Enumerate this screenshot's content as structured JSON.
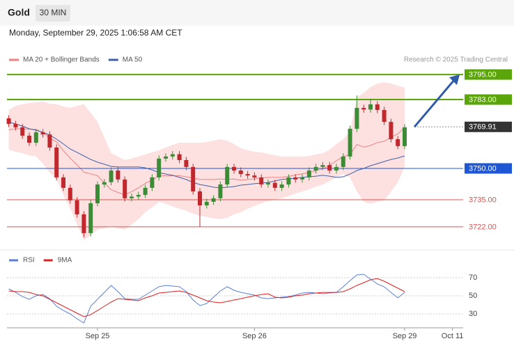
{
  "header": {
    "symbol": "Gold",
    "interval": "30 MIN",
    "timestamp": "Monday, September 29, 2025 1:06:58 AM CET",
    "credit": "Research © 2025 Trading Central"
  },
  "chart_data": [
    {
      "type": "candlestick",
      "categories": [
        null,
        null,
        null,
        null,
        null,
        null,
        null,
        null,
        null,
        null,
        null,
        null,
        null,
        "Sep 25",
        null,
        null,
        null,
        null,
        null,
        null,
        null,
        null,
        null,
        null,
        null,
        null,
        null,
        null,
        null,
        null,
        null,
        null,
        null,
        null,
        null,
        null,
        "Sep 26",
        null,
        null,
        null,
        null,
        null,
        null,
        null,
        null,
        null,
        null,
        null,
        null,
        null,
        null,
        null,
        null,
        null,
        null,
        null,
        null,
        null,
        "Sep 29",
        null,
        null,
        null,
        null,
        null,
        null,
        "Oct 11"
      ],
      "open": [
        3774,
        3771.3,
        3769.7,
        3765.7,
        3762.3,
        3767.3,
        3766.3,
        3760,
        3745.7,
        3740.7,
        3734.7,
        3728,
        3719,
        3733.3,
        3742.3,
        3743.4,
        3749,
        3744.7,
        3735.7,
        3736.5,
        3737.3,
        3740.7,
        3745.7,
        3754.7,
        3755.7,
        3756.8,
        3754,
        3750.7,
        3739,
        3732.3,
        3734,
        3735.7,
        3742.3,
        3750.7,
        3749,
        3747.3,
        3746.6,
        3745.7,
        3742.3,
        3743.1,
        3740.7,
        3742.3,
        3745.7,
        3744.7,
        3745.7,
        3749,
        3750.7,
        3751.6,
        3749,
        3750.7,
        3755.7,
        3769,
        3779,
        3778.2,
        3780.7,
        3778,
        3772.3,
        3764,
        3760.7,
        null,
        null,
        null,
        null,
        null,
        null,
        null
      ],
      "high": [
        3775.5,
        3772.8,
        3771.2,
        3767.2,
        3768.8,
        3768.8,
        3767.8,
        3761.5,
        3747.2,
        3742.2,
        3736.2,
        3729.5,
        3734.8,
        3743.8,
        3744.9,
        3750.5,
        3750.5,
        3746.2,
        3738,
        3738.8,
        3742.2,
        3747.2,
        3756.2,
        3757.2,
        3758.3,
        3758.3,
        3755.5,
        3752.2,
        3740.5,
        3735.5,
        3737.2,
        3743.8,
        3752.2,
        3752.2,
        3750.5,
        3748.8,
        3748.1,
        3747.2,
        3744.6,
        3744.6,
        3743.8,
        3747.2,
        3747.2,
        3747.2,
        3750.5,
        3752.2,
        3753.1,
        3753.1,
        3752.2,
        3757.2,
        3770.5,
        3785,
        3780.5,
        3783.5,
        3782.2,
        3779.5,
        3773.8,
        3765.5,
        3771.2,
        null,
        null,
        null,
        null,
        null,
        null,
        null
      ],
      "low": [
        3769.8,
        3768.2,
        3764.2,
        3760.8,
        3760.8,
        3764.8,
        3758.5,
        3744.2,
        3739.2,
        3733.2,
        3726.5,
        3717,
        3717.5,
        3731.8,
        3740.8,
        3741.9,
        3743.2,
        3734.2,
        3734.2,
        3735,
        3735.8,
        3739.2,
        3744.2,
        3753.2,
        3754.2,
        3752.5,
        3749.2,
        3737.5,
        3722,
        3730.8,
        3732.5,
        3734.2,
        3740.8,
        3747.5,
        3745.8,
        3745.1,
        3744.2,
        3740.8,
        3740.8,
        3739.2,
        3739.2,
        3740.8,
        3743.2,
        3743.2,
        3744.2,
        3747.5,
        3749.2,
        3747.5,
        3747.5,
        3749.2,
        3754.2,
        3767.5,
        3776.7,
        3776.7,
        3776.5,
        3770.8,
        3762.5,
        3759.2,
        3759.2,
        null,
        null,
        null,
        null,
        null,
        null,
        null
      ],
      "close": [
        3771.3,
        3769.7,
        3765.7,
        3762.3,
        3767.3,
        3766.3,
        3760,
        3745.7,
        3740.7,
        3734.7,
        3728,
        3719,
        3733.3,
        3742.3,
        3743.4,
        3749,
        3744.7,
        3735.7,
        3736.5,
        3737.3,
        3740.7,
        3745.7,
        3754.7,
        3755.7,
        3756.8,
        3754,
        3750.7,
        3739,
        3732.3,
        3734,
        3735.7,
        3742.3,
        3750.7,
        3749,
        3747.3,
        3746.6,
        3745.7,
        3742.3,
        3743.1,
        3740.7,
        3742.3,
        3745.7,
        3744.7,
        3745.7,
        3749,
        3750.7,
        3751.6,
        3749,
        3750.7,
        3755.7,
        3769,
        3779,
        3778.2,
        3780.7,
        3778,
        3772.3,
        3764,
        3760.7,
        3769.7,
        null,
        null,
        null,
        null,
        null,
        null,
        null
      ],
      "up_color": "#3d8b37",
      "down_color": "#c0282d",
      "series": [
        {
          "name": "MA 20 + Bollinger Bands",
          "color": "#f08080",
          "band_color": "#fde1e1",
          "values": [
            3768.5,
            3769,
            3769,
            3768.8,
            3768.7,
            3767.2,
            3764.5,
            3762.7,
            3758.5,
            3754.9,
            3751.7,
            3748.2,
            3747.4,
            3746.5,
            3743,
            3739.8,
            3738.5,
            3737.4,
            3738.9,
            3740.7,
            3742.9,
            3744.5,
            3746.4,
            3746.5,
            3746.5,
            3746.5,
            3746,
            3745.3,
            3744.8,
            3744.7,
            3744.7,
            3744.9,
            3744.8,
            3744.9,
            3744.4,
            3744.7,
            3745,
            3745.5,
            3745.7,
            3745.7,
            3745.7,
            3746.2,
            3746.9,
            3747.4,
            3748,
            3749,
            3749.8,
            3751.5,
            3753.7,
            3755.7,
            3756.7,
            3761.5,
            3760.2,
            3761,
            3762.4,
            3763,
            3764.9,
            3766.5,
            3769.7,
            null,
            null,
            null,
            null,
            null,
            null,
            null
          ],
          "upper": [
            3778,
            3780,
            3780.7,
            3781.3,
            3781.7,
            3782,
            3781,
            3780.7,
            3779.7,
            3779,
            3780,
            3780.7,
            3776.7,
            3772.3,
            3764.7,
            3757.3,
            3755.7,
            3754,
            3754.7,
            3755.7,
            3756.7,
            3757.7,
            3758.7,
            3760,
            3761.3,
            3762.3,
            3762.3,
            3762.3,
            3762.3,
            3762.7,
            3763.3,
            3764,
            3763.3,
            3761.7,
            3759.7,
            3758.7,
            3758,
            3757.7,
            3757,
            3756.3,
            3755.7,
            3755.7,
            3755.7,
            3755.7,
            3756,
            3756.7,
            3757.3,
            3759,
            3761.7,
            3764,
            3767.7,
            3784,
            3786.3,
            3789,
            3790.7,
            3791.3,
            3790.7,
            3789.7,
            3788.7,
            null,
            null,
            null,
            null,
            null,
            null,
            null
          ],
          "lower": [
            3759,
            3758,
            3757.3,
            3756.3,
            3755.7,
            3752.3,
            3748,
            3744.7,
            3737.3,
            3730.7,
            3723.3,
            3715.7,
            3718,
            3720.7,
            3721.3,
            3722.3,
            3721.3,
            3720.7,
            3723,
            3725.7,
            3729,
            3731.3,
            3734,
            3733,
            3731.7,
            3730.7,
            3729.7,
            3728.3,
            3727.3,
            3726.7,
            3726,
            3725.7,
            3726.3,
            3728,
            3729,
            3730.7,
            3732,
            3733.3,
            3734.3,
            3735,
            3735.7,
            3736.7,
            3738,
            3739,
            3740,
            3741.3,
            3742.3,
            3744,
            3745.7,
            3747.3,
            3745.7,
            3739,
            3734,
            3733,
            3734,
            3734.7,
            3739,
            3743.3,
            3750.7,
            null,
            null,
            null,
            null,
            null,
            null,
            null
          ]
        },
        {
          "name": "MA 50",
          "color": "#3f5fa8",
          "values": [
            3772.3,
            3771.3,
            3770.3,
            3769,
            3768.3,
            3767.3,
            3766,
            3764,
            3761.7,
            3759.3,
            3757.7,
            3756,
            3754.3,
            3753,
            3752,
            3751,
            3750.7,
            3750.7,
            3750.7,
            3750.7,
            3750.3,
            3749.3,
            3748,
            3747.3,
            3746.7,
            3745.7,
            3744.7,
            3743.3,
            3742.3,
            3741.7,
            3741,
            3740.7,
            3741,
            3741.3,
            3742,
            3742.3,
            3742.7,
            3743,
            3743.3,
            3744,
            3744.7,
            3745,
            3745.3,
            3745.7,
            3746,
            3746.3,
            3746.7,
            3746.3,
            3745.7,
            3746,
            3747.3,
            3749,
            3750,
            3751.3,
            3752.3,
            3753.3,
            3754.3,
            3755,
            3756,
            null,
            null,
            null,
            null,
            null,
            null,
            null
          ]
        }
      ],
      "levels": [
        {
          "value": 3795,
          "label": "3795.00",
          "color": "#5aa50a",
          "style": "solid",
          "label_box": true
        },
        {
          "value": 3783,
          "label": "3783.00",
          "color": "#5aa50a",
          "style": "solid",
          "label_box": true
        },
        {
          "value": 3769.91,
          "color": "#333333",
          "style": "dotted",
          "label_box": true
        },
        {
          "value": 3750,
          "label": "3750.00",
          "color": "#1e56d6",
          "style": "solid",
          "label_box": true
        },
        {
          "value": 3735,
          "label": "3735.00",
          "color": "#e05050",
          "style": "thin",
          "label_box": false
        },
        {
          "value": 3722,
          "label": "3722.00",
          "color": "#e05050",
          "style": "thin",
          "label_box": false
        }
      ],
      "ylim": [
        3711.3,
        3810.7
      ]
    },
    {
      "type": "line",
      "series": [
        {
          "name": "RSI",
          "color": "#5b7fd6",
          "values": [
            57.7,
            53.8,
            49.2,
            46.2,
            50,
            51.5,
            46.9,
            38.5,
            33.8,
            30,
            24.6,
            20,
            38.5,
            46.2,
            53.8,
            61.5,
            54.6,
            46.9,
            46.2,
            46.2,
            50.8,
            55.4,
            60,
            61.5,
            60.8,
            60,
            54.6,
            45.4,
            39.2,
            41.5,
            48.5,
            55.4,
            60,
            56.2,
            53.8,
            52.3,
            50.8,
            47.7,
            46.9,
            47.7,
            48.5,
            49.2,
            50.8,
            53.1,
            53.8,
            53.1,
            52.3,
            53.1,
            53.8,
            60,
            66.9,
            73.1,
            73.8,
            68.5,
            63.1,
            60,
            53.8,
            47.7,
            53.8,
            null,
            null,
            null,
            null,
            null,
            null,
            null
          ]
        },
        {
          "name": "9MA",
          "color": "#e02020",
          "values": [
            55.4,
            54.6,
            54.6,
            53.8,
            51.5,
            50,
            46.2,
            42.3,
            38.5,
            34.6,
            30.8,
            26.9,
            29.2,
            33.8,
            38.5,
            43.1,
            46.9,
            46.2,
            45.4,
            44.6,
            47.7,
            50,
            53.1,
            53.8,
            54.6,
            55.4,
            53.8,
            50.8,
            47.7,
            44.6,
            43.1,
            42.3,
            43.8,
            45.4,
            46.9,
            48.5,
            50,
            51.5,
            52.3,
            48.5,
            47.7,
            48.5,
            50,
            50.8,
            52.3,
            53.1,
            53.8,
            53.8,
            53.8,
            54.6,
            57.7,
            61.5,
            64.6,
            67.7,
            69.2,
            66.2,
            62.3,
            58.5,
            54.6,
            null,
            null,
            null,
            null,
            null,
            null,
            null
          ]
        }
      ],
      "ylim": [
        17.7,
        80.8
      ],
      "yticks": [
        30,
        50,
        70
      ]
    }
  ]
}
